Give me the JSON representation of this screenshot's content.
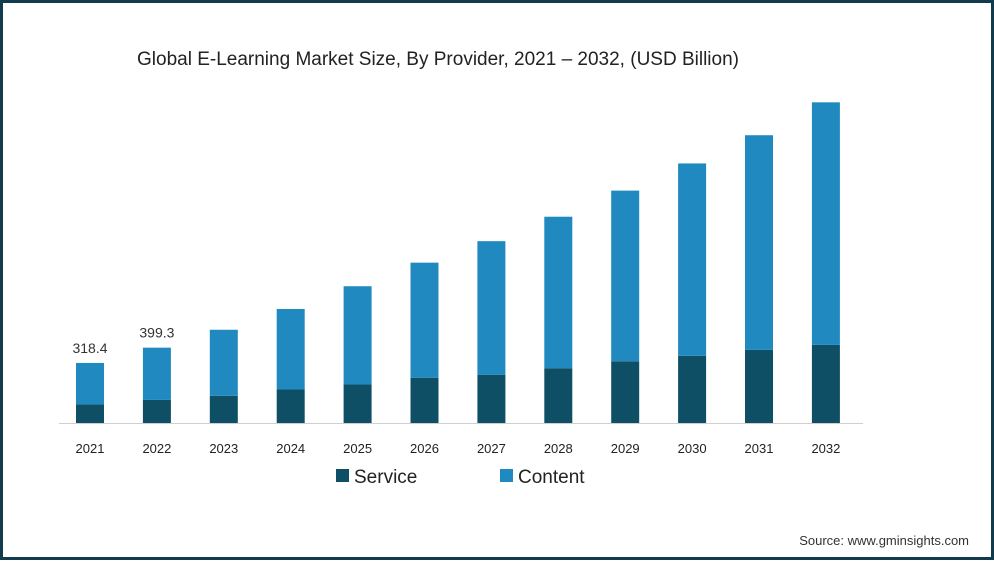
{
  "chart_data": {
    "type": "bar",
    "stacked": true,
    "title": "Global E-Learning Market Size, By Provider, 2021 – 2032, (USD Billion)",
    "xlabel": "",
    "ylabel": "",
    "categories": [
      "2021",
      "2022",
      "2023",
      "2024",
      "2025",
      "2026",
      "2027",
      "2028",
      "2029",
      "2030",
      "2031",
      "2032"
    ],
    "series": [
      {
        "name": "Service",
        "color": "#0f4f66",
        "values": [
          98.6,
          122.3,
          144.3,
          177.5,
          204.0,
          240.0,
          256.0,
          290.5,
          327.0,
          356.0,
          387.5,
          414.0
        ]
      },
      {
        "name": "Content",
        "color": "#2089c0",
        "values": [
          219.8,
          277.0,
          350.0,
          427.0,
          521.0,
          610.0,
          708.0,
          803.0,
          905.0,
          1020.0,
          1138.0,
          1286.0
        ]
      }
    ],
    "data_labels": [
      {
        "category": "2021",
        "text": "318.4"
      },
      {
        "category": "2022",
        "text": "399.3"
      }
    ],
    "ylim": [
      0,
      1760
    ],
    "grid": false,
    "legend_position": "bottom"
  },
  "source": "Source: www.gminsights.com"
}
